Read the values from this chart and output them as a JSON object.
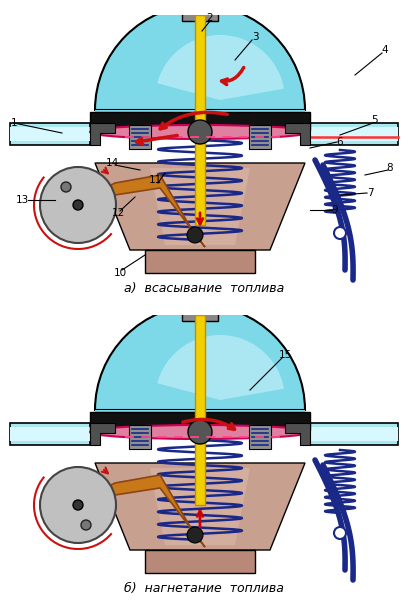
{
  "title_a": "а)  всасывание  топлива",
  "title_b": "б)  нагнетание  топлива",
  "bg_color": "#ffffff",
  "pump_body_color": "#c8a090",
  "dome_color": "#7dd8e8",
  "pipe_color": "#a8e8f0",
  "diaphragm_color": "#e080a0",
  "spring_color": "#1a2888",
  "rod_color": "#f0d000",
  "arrow_color": "#cc1010",
  "lever_color": "#c87818",
  "label_color": "#000000",
  "blue_handle_color": "#1a2888",
  "pink_line_color": "#ff4488",
  "body_gradient_light": "#d4b0a0",
  "body_gradient_dark": "#b07060"
}
